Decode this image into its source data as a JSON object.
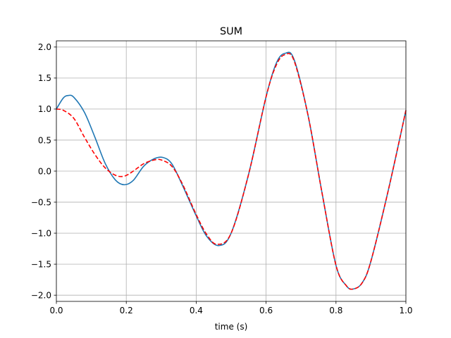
{
  "chart_data": {
    "type": "line",
    "title": "SUM",
    "xlabel": "time (s)",
    "ylabel": "",
    "xlim": [
      0.0,
      1.0
    ],
    "ylim": [
      -2.1,
      2.1
    ],
    "grid": true,
    "x_ticks": [
      0.0,
      0.2,
      0.4,
      0.6,
      0.8,
      1.0
    ],
    "x_tick_labels": [
      "0.0",
      "0.2",
      "0.4",
      "0.6",
      "0.8",
      "1.0"
    ],
    "y_ticks": [
      2.0,
      1.5,
      1.0,
      0.5,
      0.0,
      -0.5,
      -1.0,
      -1.5,
      -2.0
    ],
    "y_tick_labels": [
      "2.0",
      "1.5",
      "1.0",
      "0.5",
      "0.0",
      "−0.5",
      "−1.0",
      "−1.5",
      "−2.0"
    ],
    "series": [
      {
        "color": "#1f77b4",
        "style": "solid",
        "x": [
          0.0,
          0.02,
          0.035,
          0.05,
          0.08,
          0.11,
          0.14,
          0.17,
          0.195,
          0.22,
          0.25,
          0.28,
          0.305,
          0.33,
          0.36,
          0.4,
          0.43,
          0.465,
          0.5,
          0.55,
          0.6,
          0.63,
          0.655,
          0.68,
          0.72,
          0.76,
          0.8,
          0.83,
          0.85,
          0.875,
          0.9,
          0.95,
          1.0
        ],
        "y": [
          1.0,
          1.18,
          1.22,
          1.19,
          0.95,
          0.55,
          0.12,
          -0.15,
          -0.22,
          -0.15,
          0.08,
          0.2,
          0.22,
          0.12,
          -0.22,
          -0.72,
          -1.05,
          -1.2,
          -1.0,
          -0.05,
          1.2,
          1.75,
          1.9,
          1.8,
          0.9,
          -0.35,
          -1.52,
          -1.85,
          -1.9,
          -1.8,
          -1.45,
          -0.3,
          0.98
        ]
      },
      {
        "color": "#ff0000",
        "style": "dashed",
        "x": [
          0.0,
          0.02,
          0.05,
          0.08,
          0.11,
          0.14,
          0.17,
          0.195,
          0.22,
          0.25,
          0.28,
          0.3,
          0.33,
          0.36,
          0.4,
          0.43,
          0.46,
          0.5,
          0.55,
          0.6,
          0.63,
          0.655,
          0.68,
          0.72,
          0.76,
          0.8,
          0.83,
          0.85,
          0.875,
          0.9,
          0.95,
          1.0
        ],
        "y": [
          1.0,
          0.98,
          0.85,
          0.55,
          0.27,
          0.05,
          -0.07,
          -0.08,
          0.0,
          0.12,
          0.18,
          0.18,
          0.08,
          -0.2,
          -0.7,
          -1.02,
          -1.18,
          -1.0,
          -0.05,
          1.2,
          1.72,
          1.88,
          1.78,
          0.9,
          -0.35,
          -1.52,
          -1.85,
          -1.9,
          -1.8,
          -1.45,
          -0.3,
          0.98
        ]
      }
    ]
  }
}
